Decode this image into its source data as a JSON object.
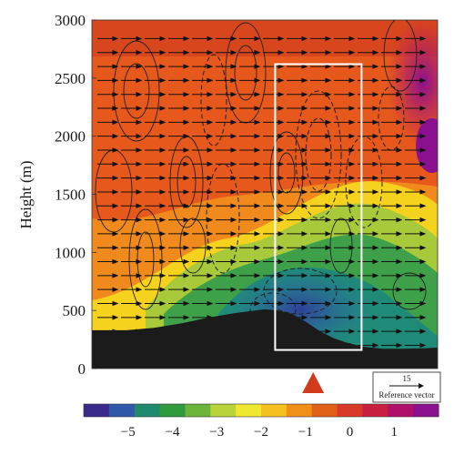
{
  "chart_data": {
    "type": "heatmap",
    "ylabel": "Height (m)",
    "ylim": [
      0,
      3000
    ],
    "yticks": [
      0,
      500,
      1000,
      1500,
      2000,
      2500,
      3000
    ],
    "ytick_labels": [
      "0",
      "500",
      "1000",
      "1500",
      "2000",
      "2500",
      "3000"
    ],
    "colorbar": {
      "range": [
        -6,
        2
      ],
      "ticks": [
        -5,
        -4,
        -3,
        -2,
        -1,
        0,
        1
      ],
      "tick_labels": [
        "−5",
        "−4",
        "−3",
        "−2",
        "−1",
        "0",
        "1"
      ],
      "colors": [
        "#3a2a8c",
        "#2f58a8",
        "#1f8a6e",
        "#2f9a3c",
        "#6ab43a",
        "#b8d43a",
        "#f0e830",
        "#f5c020",
        "#f09018",
        "#e06018",
        "#d83a2a",
        "#c82040",
        "#b0106a",
        "#8a1090"
      ]
    },
    "terrain_profile": {
      "x_fraction": [
        0,
        0.1,
        0.18,
        0.26,
        0.34,
        0.42,
        0.5,
        0.54,
        0.58,
        0.62,
        0.66,
        0.7,
        0.74,
        0.78,
        0.84,
        0.9,
        0.96,
        1.0
      ],
      "height_m": [
        330,
        330,
        350,
        390,
        440,
        480,
        510,
        500,
        470,
        400,
        320,
        260,
        220,
        190,
        170,
        170,
        175,
        180
      ]
    },
    "highlight_box": {
      "x_fraction": [
        0.53,
        0.78
      ],
      "height_m": [
        160,
        2620
      ]
    },
    "marker": {
      "shape": "triangle",
      "color": "#d13a1a",
      "x_fraction": 0.64
    },
    "reference_vector": {
      "value": "15",
      "label": "Reference vector"
    }
  }
}
